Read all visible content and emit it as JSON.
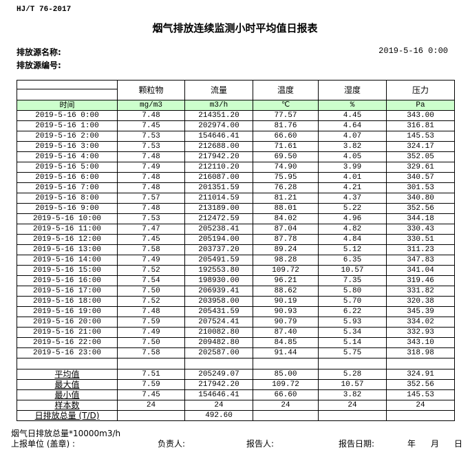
{
  "standard": "HJ/T  76-2017",
  "title": "烟气排放连续监测小时平均值日报表",
  "source_name_label": "排放源名称:",
  "source_code_label": "排放源编号:",
  "report_datetime": "2019-5-16 0:00",
  "columns": [
    "颗粒物",
    "流量",
    "温度",
    "湿度",
    "压力"
  ],
  "time_header": "时间",
  "units": [
    "mg/m3",
    "m3/h",
    "℃",
    "%",
    "Pa"
  ],
  "rows": [
    [
      "2019-5-16 0:00",
      "7.48",
      "214351.20",
      "77.57",
      "4.45",
      "343.00"
    ],
    [
      "2019-5-16 1:00",
      "7.45",
      "202974.00",
      "81.76",
      "4.64",
      "316.81"
    ],
    [
      "2019-5-16 2:00",
      "7.53",
      "154646.41",
      "66.60",
      "4.07",
      "145.53"
    ],
    [
      "2019-5-16 3:00",
      "7.53",
      "212688.00",
      "71.61",
      "3.82",
      "324.17"
    ],
    [
      "2019-5-16 4:00",
      "7.48",
      "217942.20",
      "69.50",
      "4.05",
      "352.05"
    ],
    [
      "2019-5-16 5:00",
      "7.49",
      "212110.20",
      "74.90",
      "3.99",
      "329.61"
    ],
    [
      "2019-5-16 6:00",
      "7.48",
      "216087.00",
      "75.95",
      "4.01",
      "340.57"
    ],
    [
      "2019-5-16 7:00",
      "7.48",
      "201351.59",
      "76.28",
      "4.21",
      "301.53"
    ],
    [
      "2019-5-16 8:00",
      "7.57",
      "211014.59",
      "81.21",
      "4.37",
      "340.80"
    ],
    [
      "2019-5-16 9:00",
      "7.48",
      "213189.00",
      "88.01",
      "5.22",
      "352.56"
    ],
    [
      "2019-5-16 10:00",
      "7.53",
      "212472.59",
      "84.02",
      "4.96",
      "344.18"
    ],
    [
      "2019-5-16 11:00",
      "7.47",
      "205238.41",
      "87.04",
      "4.82",
      "330.43"
    ],
    [
      "2019-5-16 12:00",
      "7.45",
      "205194.00",
      "87.78",
      "4.84",
      "330.51"
    ],
    [
      "2019-5-16 13:00",
      "7.58",
      "203737.20",
      "89.24",
      "5.12",
      "311.23"
    ],
    [
      "2019-5-16 14:00",
      "7.49",
      "205491.59",
      "98.28",
      "6.35",
      "347.83"
    ],
    [
      "2019-5-16 15:00",
      "7.52",
      "192553.80",
      "109.72",
      "10.57",
      "341.04"
    ],
    [
      "2019-5-16 16:00",
      "7.54",
      "198930.00",
      "96.21",
      "7.35",
      "319.46"
    ],
    [
      "2019-5-16 17:00",
      "7.50",
      "206939.41",
      "88.62",
      "5.80",
      "331.82"
    ],
    [
      "2019-5-16 18:00",
      "7.52",
      "203958.00",
      "90.19",
      "5.70",
      "320.38"
    ],
    [
      "2019-5-16 19:00",
      "7.48",
      "205431.59",
      "90.93",
      "6.22",
      "345.39"
    ],
    [
      "2019-5-16 20:00",
      "7.59",
      "207524.41",
      "90.79",
      "5.93",
      "334.02"
    ],
    [
      "2019-5-16 21:00",
      "7.49",
      "210082.80",
      "87.40",
      "5.34",
      "332.93"
    ],
    [
      "2019-5-16 22:00",
      "7.50",
      "209482.80",
      "84.85",
      "5.14",
      "343.10"
    ],
    [
      "2019-5-16 23:00",
      "7.58",
      "202587.00",
      "91.44",
      "5.75",
      "318.98"
    ]
  ],
  "summary": [
    [
      "平均值",
      "7.51",
      "205249.07",
      "85.00",
      "5.28",
      "324.91"
    ],
    [
      "最大值",
      "7.59",
      "217942.20",
      "109.72",
      "10.57",
      "352.56"
    ],
    [
      "最小值",
      "7.45",
      "154646.41",
      "66.60",
      "3.82",
      "145.53"
    ],
    [
      "样本数",
      "24",
      "24",
      "24",
      "24",
      "24"
    ],
    [
      "日排放总量 (T/D)",
      "",
      "492.60",
      "",
      "",
      ""
    ]
  ],
  "footer": {
    "note": "烟气日排放总量*10000m3/h",
    "unit": "上报单位 (盖章) :",
    "responsible": "负责人:",
    "reporter": "报告人:",
    "report_date": "报告日期:",
    "year": "年",
    "month": "月",
    "day": "日"
  },
  "colors": {
    "unit_row_bg": "#ccffcc"
  }
}
